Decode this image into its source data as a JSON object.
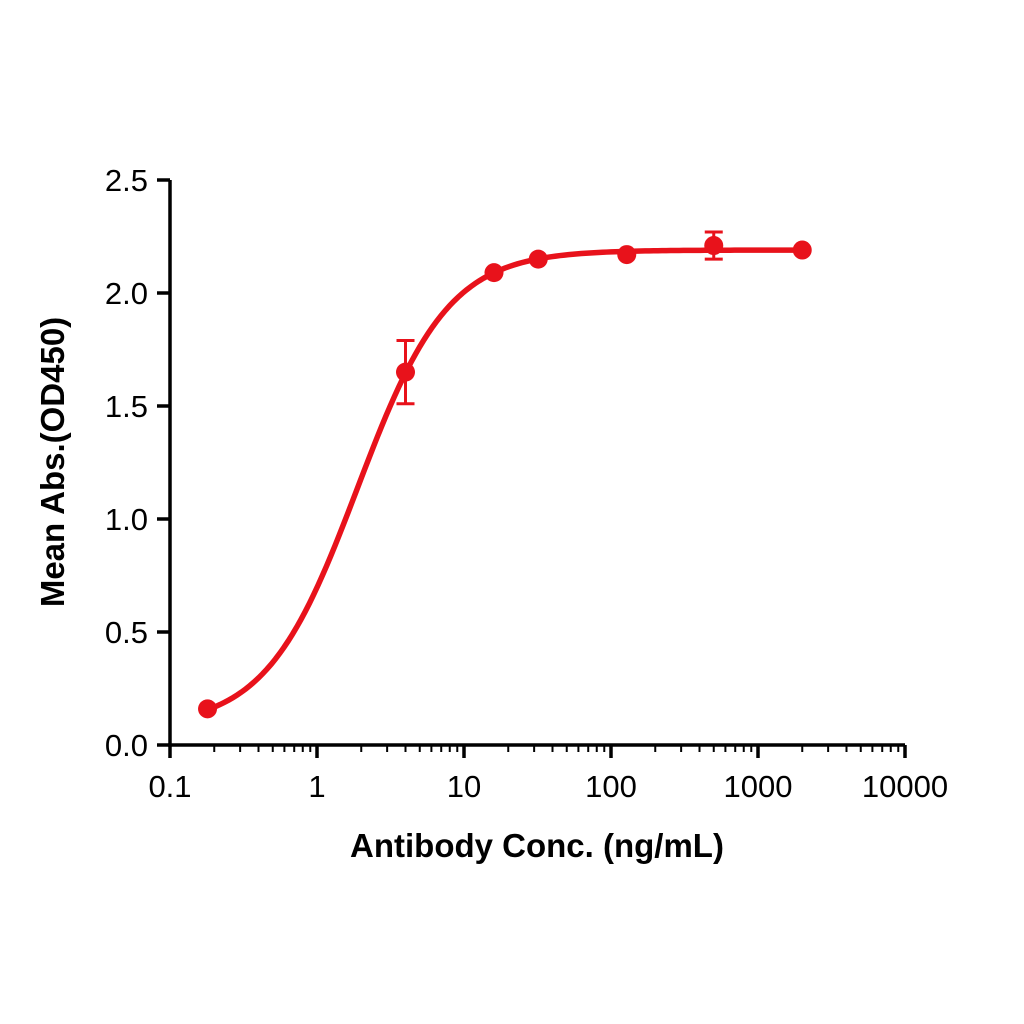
{
  "page": {
    "background": "#ffffff"
  },
  "chart_data": {
    "type": "scatter",
    "subtype": "dose-response-curve-with-error-bars",
    "title": "",
    "xlabel": "Antibody Conc. (ng/mL)",
    "ylabel": "Mean Abs.(OD450)",
    "x_scale": "log10",
    "xlim": [
      0.1,
      10000
    ],
    "ylim": [
      0.0,
      2.5
    ],
    "x_ticks": [
      0.1,
      1,
      10,
      100,
      1000,
      10000
    ],
    "x_tick_labels": [
      "0.1",
      "1",
      "10",
      "100",
      "1000",
      "10000"
    ],
    "x_minor_ticks": true,
    "y_ticks": [
      0.0,
      0.5,
      1.0,
      1.5,
      2.0,
      2.5
    ],
    "y_tick_labels": [
      "0.0",
      "0.5",
      "1.0",
      "1.5",
      "2.0",
      "2.5"
    ],
    "grid": false,
    "legend_position": "none",
    "axis_color": "#000000",
    "series": [
      {
        "name": "Mean Abs.(OD450)",
        "color": "#e8121b",
        "marker": "circle",
        "points": [
          {
            "x": 0.18,
            "y": 0.16,
            "err": 0
          },
          {
            "x": 4,
            "y": 1.65,
            "err": 0.14
          },
          {
            "x": 16,
            "y": 2.09,
            "err": 0
          },
          {
            "x": 32,
            "y": 2.15,
            "err": 0
          },
          {
            "x": 128,
            "y": 2.17,
            "err": 0
          },
          {
            "x": 500,
            "y": 2.21,
            "err": 0.06
          },
          {
            "x": 2000,
            "y": 2.19,
            "err": 0
          }
        ],
        "fit": {
          "model": "4PL",
          "bottom": 0.08,
          "top": 2.19,
          "ec50": 1.88,
          "hill": 1.4,
          "x_range": [
            0.18,
            2000
          ]
        }
      }
    ]
  }
}
